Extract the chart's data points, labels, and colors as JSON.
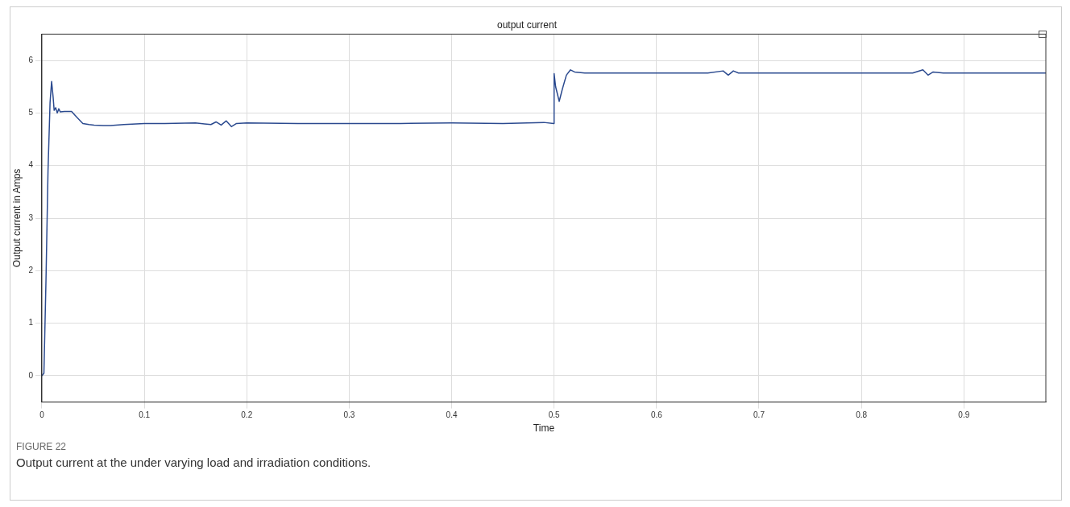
{
  "chart_data": {
    "type": "line",
    "title": "output current",
    "xlabel": "Time",
    "ylabel": "Output current in Amps",
    "xlim": [
      0,
      0.98
    ],
    "xticks": [
      0,
      0.1,
      0.2,
      0.3,
      0.4,
      0.5,
      0.6,
      0.7,
      0.8,
      0.9
    ],
    "ylim": [
      -0.5,
      6.5
    ],
    "yticks": [
      0,
      1,
      2,
      3,
      4,
      5,
      6
    ],
    "grid": true,
    "legend": false,
    "marker": "none",
    "line_style": "solid",
    "series": [
      {
        "color": "#2b4a8f",
        "x": [
          0,
          0.002,
          0.004,
          0.006,
          0.008,
          0.0095,
          0.011,
          0.012,
          0.0135,
          0.015,
          0.0165,
          0.018,
          0.022,
          0.029,
          0.034,
          0.04,
          0.046,
          0.051,
          0.06,
          0.067,
          0.08,
          0.1,
          0.12,
          0.15,
          0.165,
          0.17,
          0.175,
          0.18,
          0.185,
          0.19,
          0.2,
          0.25,
          0.3,
          0.35,
          0.4,
          0.45,
          0.49,
          0.4995,
          0.5,
          0.5015,
          0.505,
          0.508,
          0.512,
          0.516,
          0.52,
          0.53,
          0.55,
          0.6,
          0.65,
          0.665,
          0.67,
          0.675,
          0.68,
          0.7,
          0.75,
          0.8,
          0.85,
          0.86,
          0.865,
          0.87,
          0.88,
          0.9,
          0.95,
          0.98
        ],
        "values": [
          0,
          0.05,
          1.8,
          3.9,
          5.2,
          5.6,
          5.3,
          5.05,
          5.1,
          5.0,
          5.08,
          5.02,
          5.03,
          5.03,
          4.92,
          4.8,
          4.78,
          4.77,
          4.76,
          4.76,
          4.78,
          4.8,
          4.8,
          4.81,
          4.78,
          4.83,
          4.77,
          4.85,
          4.74,
          4.8,
          4.81,
          4.8,
          4.8,
          4.8,
          4.81,
          4.8,
          4.82,
          4.8,
          5.75,
          5.5,
          5.22,
          5.45,
          5.72,
          5.82,
          5.78,
          5.76,
          5.76,
          5.76,
          5.76,
          5.8,
          5.72,
          5.8,
          5.76,
          5.76,
          5.76,
          5.76,
          5.76,
          5.82,
          5.72,
          5.78,
          5.76,
          5.76,
          5.76,
          5.76
        ]
      }
    ],
    "annotations": [
      "FIGURE 22",
      "Output current at the under varying load and irradiation conditions."
    ]
  }
}
